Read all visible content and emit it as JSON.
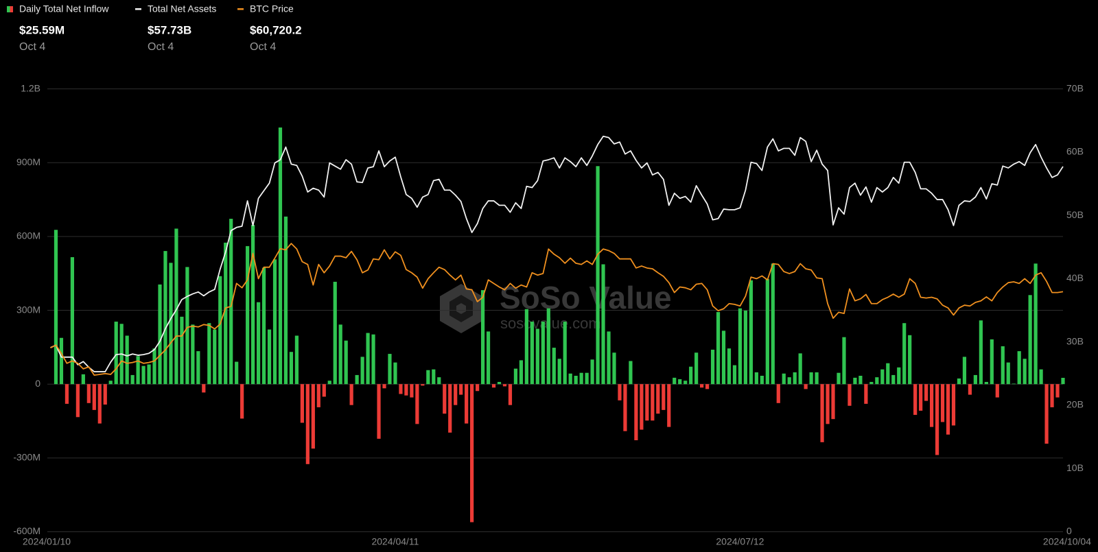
{
  "chart_data": {
    "type": "bar-line",
    "watermark": [
      "SoSo Value",
      "sosovalue.com"
    ],
    "categories": [
      "2024/01/10",
      null,
      null,
      null,
      null,
      null,
      null,
      null,
      null,
      null,
      null,
      null,
      null,
      null,
      null,
      null,
      null,
      null,
      null,
      null,
      null,
      null,
      null,
      null,
      null,
      null,
      null,
      null,
      null,
      null,
      null,
      null,
      null,
      null,
      null,
      null,
      null,
      null,
      null,
      null,
      null,
      null,
      null,
      null,
      null,
      null,
      null,
      null,
      null,
      null,
      null,
      null,
      null,
      null,
      null,
      null,
      null,
      null,
      null,
      null,
      null,
      null,
      null,
      "2024/04/11",
      null,
      null,
      null,
      null,
      null,
      null,
      null,
      null,
      null,
      null,
      null,
      null,
      null,
      null,
      null,
      null,
      null,
      null,
      null,
      null,
      null,
      null,
      null,
      null,
      null,
      null,
      null,
      null,
      null,
      null,
      null,
      null,
      null,
      null,
      null,
      null,
      null,
      null,
      null,
      null,
      null,
      null,
      null,
      null,
      null,
      null,
      null,
      null,
      null,
      null,
      null,
      null,
      null,
      null,
      null,
      null,
      null,
      null,
      null,
      null,
      null,
      null,
      "2024/07/12",
      null,
      null,
      null,
      null,
      null,
      null,
      null,
      null,
      null,
      null,
      null,
      null,
      null,
      null,
      null,
      null,
      null,
      null,
      null,
      null,
      null,
      null,
      null,
      null,
      null,
      null,
      null,
      null,
      null,
      null,
      null,
      null,
      null,
      null,
      null,
      null,
      null,
      null,
      null,
      null,
      null,
      null,
      null,
      null,
      null,
      null,
      null,
      null,
      null,
      null,
      null,
      null,
      null,
      null,
      null,
      null,
      null,
      null,
      "2024/10/04"
    ],
    "ylim": [
      -600,
      1200
    ],
    "yticks": [
      {
        "value": 1200,
        "label": "1.2B"
      },
      {
        "value": 900,
        "label": "900M"
      },
      {
        "value": 600,
        "label": "600M"
      },
      {
        "value": 300,
        "label": "300M"
      },
      0,
      {
        "value": -300,
        "label": "-300M"
      },
      {
        "value": -600,
        "label": "-600M"
      }
    ],
    "y2lim": [
      0,
      70
    ],
    "y2ticks": [
      {
        "value": 70,
        "label": "70B"
      },
      {
        "value": 60,
        "label": "60B"
      },
      {
        "value": 50,
        "label": "50B"
      },
      {
        "value": 40,
        "label": "40B"
      },
      {
        "value": 30,
        "label": "30B"
      },
      {
        "value": 20,
        "label": "20B"
      },
      {
        "value": 10,
        "label": "10B"
      },
      0
    ],
    "y3lim": [
      0,
      112000
    ],
    "grid": true,
    "series": [
      {
        "name": "Daily Total Net Inflow",
        "type": "bar",
        "color": "#30c551",
        "negative_color": "#ec3b36",
        "latest": {
          "label": "$25.59M",
          "date": "Oct 4"
        },
        "values": [
          null,
          627,
          188,
          -80,
          516,
          -134,
          40,
          -77,
          -105,
          -160,
          -83,
          14,
          254,
          245,
          197,
          37,
          114,
          74,
          80,
          145,
          405,
          541,
          493,
          632,
          274,
          476,
          242,
          134,
          -34,
          248,
          222,
          439,
          575,
          672,
          91,
          -140,
          561,
          647,
          333,
          473,
          222,
          507,
          1043,
          681,
          131,
          197,
          -157,
          -325,
          -262,
          -94,
          -51,
          14,
          416,
          242,
          177,
          -85,
          37,
          111,
          208,
          202,
          -222,
          -17,
          123,
          88,
          -40,
          -46,
          -54,
          -162,
          -6,
          57,
          60,
          28,
          -120,
          -197,
          -85,
          -43,
          -160,
          -561,
          -28,
          382,
          214,
          -14,
          9,
          -9,
          -85,
          63,
          97,
          305,
          254,
          225,
          254,
          308,
          148,
          103,
          254,
          43,
          34,
          46,
          46,
          100,
          886,
          487,
          214,
          128,
          -66,
          -191,
          94,
          -228,
          -185,
          -148,
          -148,
          -120,
          -105,
          -174,
          26,
          20,
          14,
          71,
          128,
          -14,
          -20,
          140,
          293,
          217,
          145,
          77,
          308,
          299,
          422,
          48,
          34,
          427,
          490,
          -77,
          43,
          28,
          48,
          125,
          -20,
          48,
          48,
          -236,
          -162,
          -142,
          46,
          191,
          -88,
          26,
          34,
          -80,
          9,
          28,
          60,
          85,
          37,
          68,
          248,
          199,
          -125,
          -108,
          -68,
          -174,
          -288,
          -154,
          -205,
          -168,
          23,
          111,
          -43,
          37,
          259,
          9,
          182,
          -54,
          154,
          88,
          2,
          134,
          103,
          362,
          490,
          60,
          -242,
          -94,
          -54,
          25.59
        ]
      },
      {
        "name": "Total Net Assets",
        "type": "line",
        "axis": "y2",
        "color": "#f2f2f2",
        "latest": {
          "label": "$57.73B",
          "date": "Oct 4"
        },
        "values": [
          29.1,
          29.5,
          27.6,
          27.6,
          27.6,
          26.4,
          26.9,
          26.0,
          25.3,
          25.3,
          25.3,
          26.8,
          28.0,
          28.1,
          27.8,
          28.1,
          27.9,
          28.0,
          28.2,
          28.8,
          30.1,
          32.1,
          33.7,
          35.1,
          36.7,
          37.2,
          37.6,
          37.9,
          37.3,
          37.9,
          38.3,
          41.5,
          44.2,
          47.6,
          48.1,
          48.3,
          52.3,
          48.4,
          52.7,
          53.9,
          55.1,
          58.3,
          58.8,
          60.8,
          58.1,
          57.9,
          56.2,
          53.7,
          54.3,
          54.0,
          52.9,
          58.3,
          57.8,
          57.3,
          58.8,
          58.1,
          55.3,
          55.2,
          57.5,
          57.7,
          60.2,
          57.7,
          58.6,
          59.2,
          56.1,
          53.3,
          52.7,
          51.3,
          52.9,
          53.3,
          55.5,
          55.7,
          54.0,
          54.0,
          53.2,
          52.2,
          49.5,
          47.3,
          48.7,
          51.1,
          52.3,
          52.3,
          51.6,
          51.6,
          50.5,
          52.0,
          51.1,
          54.6,
          54.4,
          55.5,
          58.6,
          58.8,
          59.1,
          57.5,
          59.1,
          58.5,
          57.7,
          59.1,
          57.9,
          59.4,
          61.2,
          62.5,
          62.3,
          61.3,
          61.6,
          59.7,
          60.2,
          58.7,
          57.5,
          58.3,
          56.4,
          56.8,
          55.7,
          51.6,
          53.5,
          52.7,
          53.0,
          52.1,
          54.7,
          53.2,
          51.8,
          49.3,
          49.5,
          51.0,
          50.9,
          50.9,
          51.2,
          54.0,
          58.4,
          58.2,
          57.1,
          60.8,
          62.1,
          60.2,
          60.6,
          60.6,
          59.5,
          62.3,
          61.7,
          58.5,
          60.3,
          58.1,
          57.1,
          48.5,
          51.2,
          50.2,
          54.4,
          55.1,
          53.2,
          54.5,
          52.1,
          54.4,
          53.7,
          54.4,
          56.0,
          55.1,
          58.4,
          58.4,
          56.8,
          54.2,
          54.2,
          53.5,
          52.5,
          52.5,
          50.9,
          48.4,
          51.6,
          52.3,
          52.2,
          52.9,
          54.4,
          52.6,
          55.0,
          54.8,
          57.8,
          57.5,
          58.1,
          58.5,
          57.9,
          59.9,
          61.2,
          59.2,
          57.5,
          56.0,
          56.4,
          57.73
        ]
      },
      {
        "name": "BTC Price",
        "type": "line",
        "axis": "y3",
        "color": "#f0901f",
        "latest": {
          "label": "$60,720.2",
          "date": "Oct 4"
        },
        "values": [
          46500,
          47200,
          45100,
          42600,
          43200,
          42600,
          41200,
          41700,
          39600,
          39800,
          40000,
          39800,
          41200,
          43200,
          42600,
          42800,
          43200,
          42600,
          42800,
          43200,
          44600,
          46000,
          47800,
          49500,
          49500,
          51700,
          52000,
          51800,
          52400,
          52200,
          51300,
          52500,
          56600,
          57000,
          62800,
          61700,
          63700,
          70400,
          64000,
          66900,
          66900,
          69200,
          71600,
          71300,
          72900,
          71500,
          68300,
          67600,
          62400,
          67600,
          65500,
          67200,
          69700,
          69700,
          69300,
          70900,
          68800,
          65500,
          66200,
          69000,
          68800,
          71300,
          69000,
          70800,
          69900,
          66300,
          65500,
          64400,
          61600,
          64000,
          65500,
          66900,
          66300,
          64900,
          63700,
          64900,
          61400,
          61200,
          58200,
          59300,
          63700,
          62800,
          61900,
          61200,
          62800,
          61600,
          62400,
          61900,
          65500,
          64900,
          65300,
          71500,
          70200,
          69300,
          67900,
          69200,
          67900,
          67600,
          68500,
          67600,
          70200,
          71500,
          71100,
          70400,
          69000,
          69000,
          69000,
          66700,
          67200,
          66700,
          66500,
          65500,
          64600,
          63000,
          60500,
          61900,
          61700,
          61200,
          62600,
          62800,
          61200,
          57100,
          55900,
          56400,
          57700,
          57500,
          57100,
          59600,
          64400,
          64000,
          64700,
          63700,
          67800,
          67600,
          65800,
          65300,
          65800,
          67800,
          66500,
          66200,
          64200,
          64000,
          57700,
          54000,
          55500,
          55200,
          61400,
          58400,
          58900,
          60000,
          57700,
          57700,
          58700,
          59300,
          60100,
          59300,
          60100,
          64000,
          62800,
          59300,
          59100,
          59300,
          58900,
          57300,
          56600,
          54800,
          56600,
          57300,
          57100,
          58000,
          58400,
          59400,
          58400,
          60500,
          61900,
          63000,
          63200,
          62800,
          64000,
          62800,
          64900,
          65500,
          63300,
          60500,
          60500,
          60720.2
        ]
      }
    ]
  }
}
